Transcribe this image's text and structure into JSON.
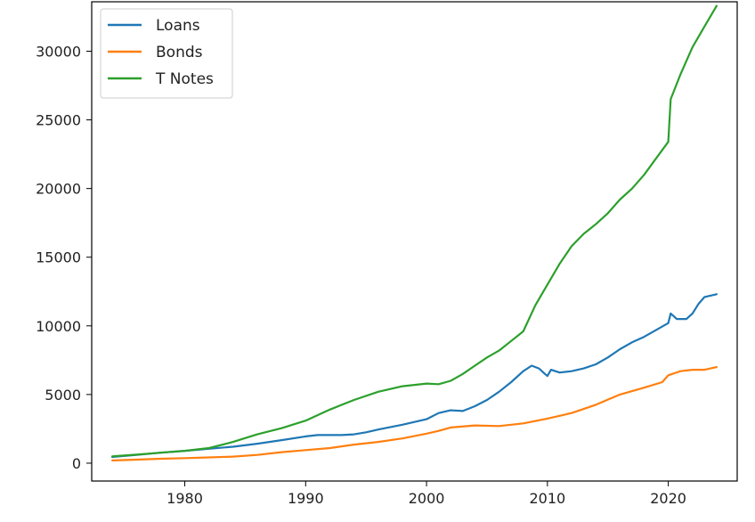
{
  "chart_data": {
    "type": "line",
    "title": "",
    "xlabel": "",
    "ylabel": "",
    "xlim": [
      1972.3,
      2025.7
    ],
    "ylim": [
      -1300,
      33600
    ],
    "x_ticks": [
      1980,
      1990,
      2000,
      2010,
      2020
    ],
    "y_ticks": [
      0,
      5000,
      10000,
      15000,
      20000,
      25000,
      30000
    ],
    "grid": false,
    "legend": "top-left",
    "series": [
      {
        "name": "Loans",
        "color": "#1f77b4",
        "points": [
          [
            1974,
            450
          ],
          [
            1976,
            600
          ],
          [
            1978,
            760
          ],
          [
            1980,
            900
          ],
          [
            1982,
            1050
          ],
          [
            1984,
            1200
          ],
          [
            1986,
            1420
          ],
          [
            1988,
            1680
          ],
          [
            1990,
            1950
          ],
          [
            1991,
            2050
          ],
          [
            1993,
            2050
          ],
          [
            1994,
            2100
          ],
          [
            1995,
            2250
          ],
          [
            1996,
            2450
          ],
          [
            1998,
            2800
          ],
          [
            2000,
            3200
          ],
          [
            2001,
            3650
          ],
          [
            2002,
            3850
          ],
          [
            2003,
            3800
          ],
          [
            2004,
            4150
          ],
          [
            2005,
            4600
          ],
          [
            2006,
            5200
          ],
          [
            2007,
            5900
          ],
          [
            2008,
            6700
          ],
          [
            2008.7,
            7100
          ],
          [
            2009.3,
            6900
          ],
          [
            2009.8,
            6500
          ],
          [
            2010,
            6350
          ],
          [
            2010.3,
            6800
          ],
          [
            2011,
            6600
          ],
          [
            2012,
            6700
          ],
          [
            2013,
            6900
          ],
          [
            2014,
            7200
          ],
          [
            2015,
            7700
          ],
          [
            2016,
            8300
          ],
          [
            2017,
            8800
          ],
          [
            2018,
            9200
          ],
          [
            2019,
            9700
          ],
          [
            2020,
            10200
          ],
          [
            2020.2,
            10900
          ],
          [
            2020.7,
            10500
          ],
          [
            2021.5,
            10500
          ],
          [
            2022,
            10900
          ],
          [
            2022.5,
            11600
          ],
          [
            2023,
            12100
          ],
          [
            2024,
            12300
          ]
        ]
      },
      {
        "name": "Bonds",
        "color": "#ff7f0e",
        "points": [
          [
            1974,
            200
          ],
          [
            1976,
            260
          ],
          [
            1978,
            320
          ],
          [
            1980,
            370
          ],
          [
            1982,
            420
          ],
          [
            1984,
            480
          ],
          [
            1986,
            600
          ],
          [
            1988,
            800
          ],
          [
            1990,
            950
          ],
          [
            1992,
            1100
          ],
          [
            1994,
            1350
          ],
          [
            1996,
            1550
          ],
          [
            1998,
            1800
          ],
          [
            2000,
            2150
          ],
          [
            2001,
            2350
          ],
          [
            2002,
            2600
          ],
          [
            2004,
            2750
          ],
          [
            2006,
            2700
          ],
          [
            2008,
            2900
          ],
          [
            2010,
            3250
          ],
          [
            2012,
            3650
          ],
          [
            2014,
            4250
          ],
          [
            2016,
            5000
          ],
          [
            2018,
            5500
          ],
          [
            2019.5,
            5900
          ],
          [
            2020,
            6400
          ],
          [
            2021,
            6700
          ],
          [
            2022,
            6800
          ],
          [
            2023,
            6800
          ],
          [
            2024,
            7000
          ]
        ]
      },
      {
        "name": "T Notes",
        "color": "#2ca02c",
        "points": [
          [
            1974,
            500
          ],
          [
            1976,
            620
          ],
          [
            1978,
            760
          ],
          [
            1980,
            900
          ],
          [
            1982,
            1100
          ],
          [
            1984,
            1550
          ],
          [
            1986,
            2100
          ],
          [
            1988,
            2550
          ],
          [
            1990,
            3100
          ],
          [
            1992,
            3900
          ],
          [
            1994,
            4600
          ],
          [
            1996,
            5200
          ],
          [
            1998,
            5600
          ],
          [
            2000,
            5800
          ],
          [
            2001,
            5750
          ],
          [
            2002,
            6000
          ],
          [
            2003,
            6500
          ],
          [
            2004,
            7100
          ],
          [
            2005,
            7700
          ],
          [
            2006,
            8200
          ],
          [
            2007,
            8900
          ],
          [
            2008,
            9600
          ],
          [
            2009,
            11500
          ],
          [
            2010,
            13000
          ],
          [
            2011,
            14500
          ],
          [
            2012,
            15800
          ],
          [
            2013,
            16700
          ],
          [
            2014,
            17400
          ],
          [
            2015,
            18200
          ],
          [
            2016,
            19200
          ],
          [
            2017,
            20000
          ],
          [
            2018,
            21000
          ],
          [
            2019,
            22200
          ],
          [
            2020,
            23400
          ],
          [
            2020.2,
            26500
          ],
          [
            2021,
            28300
          ],
          [
            2022,
            30300
          ],
          [
            2023,
            31800
          ],
          [
            2024,
            33300
          ]
        ]
      }
    ]
  }
}
